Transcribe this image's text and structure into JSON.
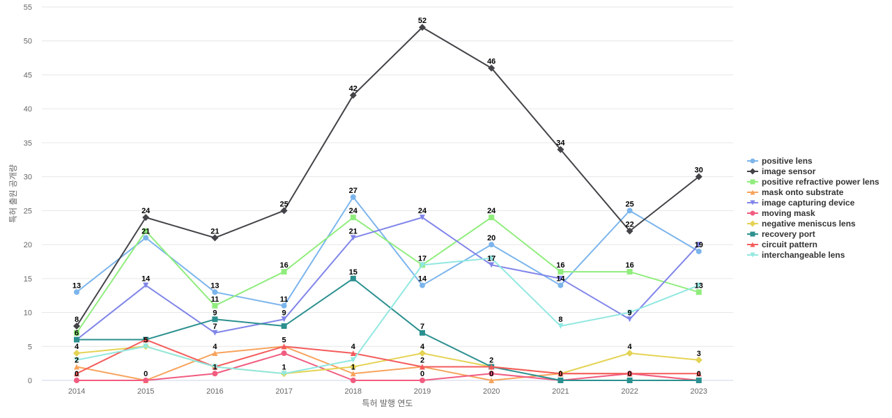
{
  "chart_data": {
    "type": "line",
    "title": "",
    "xlabel": "특허 발행 연도",
    "ylabel": "특허 출원 공개량",
    "ylim": [
      0,
      55
    ],
    "yticks": [
      0,
      5,
      10,
      15,
      20,
      25,
      30,
      35,
      40,
      45,
      50,
      55
    ],
    "grid": true,
    "legend_position": "right",
    "x": [
      "2014",
      "2015",
      "2016",
      "2017",
      "2018",
      "2019",
      "2020",
      "2021",
      "2022",
      "2023"
    ],
    "series": [
      {
        "name": "positive lens",
        "color": "#7cb5ec",
        "marker": "circle",
        "values": [
          13,
          21,
          13,
          11,
          27,
          14,
          20,
          14,
          25,
          19
        ]
      },
      {
        "name": "image sensor",
        "color": "#434348",
        "marker": "diamond",
        "values": [
          8,
          24,
          21,
          25,
          42,
          52,
          46,
          34,
          22,
          30
        ]
      },
      {
        "name": "positive refractive power lens",
        "color": "#90ed7d",
        "marker": "square",
        "values": [
          7,
          22,
          11,
          16,
          24,
          17,
          24,
          16,
          16,
          13
        ]
      },
      {
        "name": "mask onto substrate",
        "color": "#f7a35c",
        "marker": "triangle",
        "values": [
          2,
          0,
          4,
          5,
          1,
          2,
          0,
          1,
          1,
          0
        ]
      },
      {
        "name": "image capturing device",
        "color": "#8085e9",
        "marker": "triangle-down",
        "values": [
          6,
          14,
          7,
          9,
          21,
          24,
          17,
          15,
          9,
          20
        ]
      },
      {
        "name": "moving mask",
        "color": "#f15c80",
        "marker": "circle",
        "values": [
          0,
          0,
          1,
          4,
          0,
          0,
          1,
          0,
          1,
          0
        ]
      },
      {
        "name": "negative meniscus lens",
        "color": "#e4d354",
        "marker": "diamond",
        "values": [
          4,
          5,
          2,
          1,
          2,
          4,
          2,
          1,
          4,
          3
        ]
      },
      {
        "name": "recovery port",
        "color": "#2b908f",
        "marker": "square",
        "values": [
          6,
          6,
          9,
          8,
          15,
          7,
          2,
          0,
          0,
          0
        ]
      },
      {
        "name": "circuit pattern",
        "color": "#f45b5b",
        "marker": "triangle",
        "values": [
          1,
          6,
          2,
          5,
          4,
          2,
          2,
          1,
          1,
          1
        ]
      },
      {
        "name": "interchangeable lens",
        "color": "#91e8e1",
        "marker": "triangle-down",
        "values": [
          3,
          5,
          2,
          1,
          3,
          17,
          18,
          8,
          10,
          14
        ]
      }
    ],
    "data_labels": [
      {
        "x": "2014",
        "text": "13",
        "value": 13
      },
      {
        "x": "2014",
        "text": "8",
        "value": 8
      },
      {
        "x": "2014",
        "text": "6",
        "value": 6
      },
      {
        "x": "2014",
        "text": "4",
        "value": 4
      },
      {
        "x": "2014",
        "text": "2",
        "value": 2
      },
      {
        "x": "2014",
        "text": "0",
        "value": 0
      },
      {
        "x": "2015",
        "text": "24",
        "value": 24
      },
      {
        "x": "2015",
        "text": "21",
        "value": 21
      },
      {
        "x": "2015",
        "text": "14",
        "value": 14
      },
      {
        "x": "2015",
        "text": "5",
        "value": 5
      },
      {
        "x": "2015",
        "text": "0",
        "value": 0
      },
      {
        "x": "2016",
        "text": "21",
        "value": 21
      },
      {
        "x": "2016",
        "text": "13",
        "value": 13
      },
      {
        "x": "2016",
        "text": "11",
        "value": 11
      },
      {
        "x": "2016",
        "text": "9",
        "value": 9
      },
      {
        "x": "2016",
        "text": "7",
        "value": 7
      },
      {
        "x": "2016",
        "text": "4",
        "value": 4
      },
      {
        "x": "2016",
        "text": "1",
        "value": 1
      },
      {
        "x": "2017",
        "text": "25",
        "value": 25
      },
      {
        "x": "2017",
        "text": "16",
        "value": 16
      },
      {
        "x": "2017",
        "text": "11",
        "value": 11
      },
      {
        "x": "2017",
        "text": "9",
        "value": 9
      },
      {
        "x": "2017",
        "text": "5",
        "value": 5
      },
      {
        "x": "2017",
        "text": "1",
        "value": 1
      },
      {
        "x": "2018",
        "text": "42",
        "value": 42
      },
      {
        "x": "2018",
        "text": "27",
        "value": 27
      },
      {
        "x": "2018",
        "text": "24",
        "value": 24
      },
      {
        "x": "2018",
        "text": "21",
        "value": 21
      },
      {
        "x": "2018",
        "text": "15",
        "value": 15
      },
      {
        "x": "2018",
        "text": "4",
        "value": 4
      },
      {
        "x": "2018",
        "text": "1",
        "value": 1
      },
      {
        "x": "2019",
        "text": "52",
        "value": 52
      },
      {
        "x": "2019",
        "text": "24",
        "value": 24
      },
      {
        "x": "2019",
        "text": "17",
        "value": 17
      },
      {
        "x": "2019",
        "text": "14",
        "value": 14
      },
      {
        "x": "2019",
        "text": "7",
        "value": 7
      },
      {
        "x": "2019",
        "text": "4",
        "value": 4
      },
      {
        "x": "2019",
        "text": "2",
        "value": 2
      },
      {
        "x": "2019",
        "text": "0",
        "value": 0
      },
      {
        "x": "2020",
        "text": "46",
        "value": 46
      },
      {
        "x": "2020",
        "text": "24",
        "value": 24
      },
      {
        "x": "2020",
        "text": "20",
        "value": 20
      },
      {
        "x": "2020",
        "text": "17",
        "value": 17
      },
      {
        "x": "2020",
        "text": "2",
        "value": 2
      },
      {
        "x": "2020",
        "text": "0",
        "value": 0
      },
      {
        "x": "2021",
        "text": "34",
        "value": 34
      },
      {
        "x": "2021",
        "text": "16",
        "value": 16
      },
      {
        "x": "2021",
        "text": "14",
        "value": 14
      },
      {
        "x": "2021",
        "text": "8",
        "value": 8
      },
      {
        "x": "2021",
        "text": "0",
        "value": 0
      },
      {
        "x": "2022",
        "text": "25",
        "value": 25
      },
      {
        "x": "2022",
        "text": "22",
        "value": 22
      },
      {
        "x": "2022",
        "text": "16",
        "value": 16
      },
      {
        "x": "2022",
        "text": "9",
        "value": 9
      },
      {
        "x": "2022",
        "text": "4",
        "value": 4
      },
      {
        "x": "2022",
        "text": "0",
        "value": 0
      },
      {
        "x": "2023",
        "text": "30",
        "value": 30
      },
      {
        "x": "2023",
        "text": "19",
        "value": 19
      },
      {
        "x": "2023",
        "text": "13",
        "value": 13
      },
      {
        "x": "2023",
        "text": "3",
        "value": 3
      },
      {
        "x": "2023",
        "text": "0",
        "value": 0
      }
    ]
  }
}
